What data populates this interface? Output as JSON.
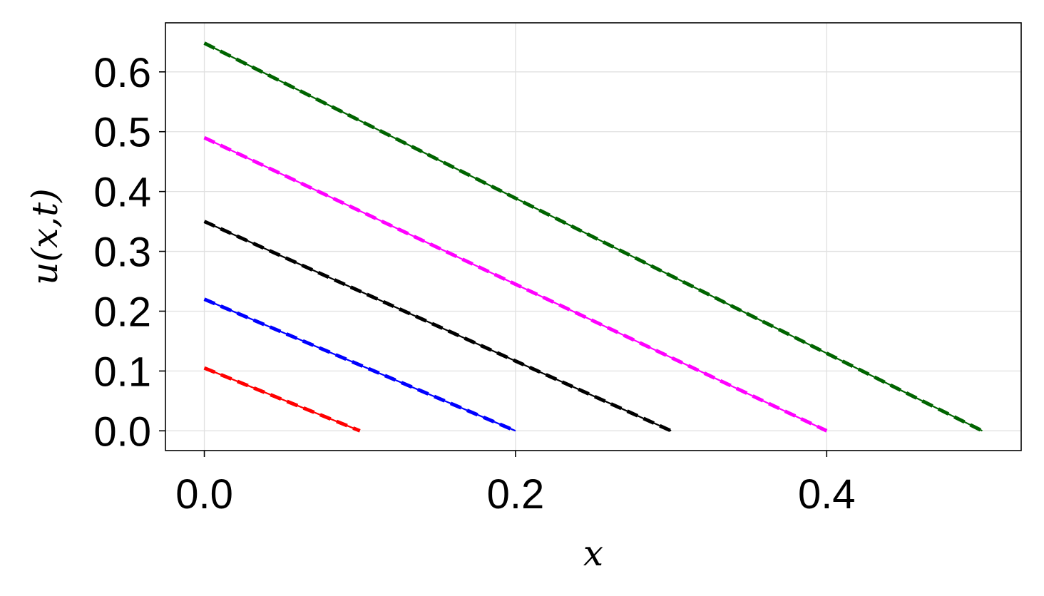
{
  "chart_data": {
    "type": "line",
    "title": "",
    "xlabel": "x",
    "ylabel": "u(x,t)",
    "xlim": [
      -0.025,
      0.525
    ],
    "ylim": [
      -0.033,
      0.682
    ],
    "xticks": [
      0.0,
      0.2,
      0.4
    ],
    "xtick_labels": [
      "0.0",
      "0.2",
      "0.4"
    ],
    "yticks": [
      0.0,
      0.1,
      0.2,
      0.3,
      0.4,
      0.5,
      0.6
    ],
    "ytick_labels": [
      "0.0",
      "0.1",
      "0.2",
      "0.3",
      "0.4",
      "0.5",
      "0.6"
    ],
    "grid": true,
    "legend": "none",
    "series": [
      {
        "color": "#ff0000",
        "style": "solid",
        "x": [
          0.0,
          0.1
        ],
        "y": [
          0.105,
          0.0
        ]
      },
      {
        "color": "#ff0000",
        "style": "dashed",
        "x": [
          0.0,
          0.1
        ],
        "y": [
          0.105,
          0.0
        ]
      },
      {
        "color": "#0000ff",
        "style": "solid",
        "x": [
          0.0,
          0.2
        ],
        "y": [
          0.22,
          0.0
        ]
      },
      {
        "color": "#0000ff",
        "style": "dashed",
        "x": [
          0.0,
          0.2
        ],
        "y": [
          0.22,
          0.0
        ]
      },
      {
        "color": "#000000",
        "style": "solid",
        "x": [
          0.0,
          0.3
        ],
        "y": [
          0.35,
          0.0
        ]
      },
      {
        "color": "#000000",
        "style": "dashed",
        "x": [
          0.0,
          0.3
        ],
        "y": [
          0.35,
          0.0
        ]
      },
      {
        "color": "#ff00ff",
        "style": "solid",
        "x": [
          0.0,
          0.4
        ],
        "y": [
          0.49,
          0.0
        ]
      },
      {
        "color": "#ff00ff",
        "style": "dashed",
        "x": [
          0.0,
          0.4
        ],
        "y": [
          0.49,
          0.0
        ]
      },
      {
        "color": "#006400",
        "style": "solid",
        "x": [
          0.0,
          0.5
        ],
        "y": [
          0.648,
          0.0
        ]
      },
      {
        "color": "#006400",
        "style": "dashed",
        "x": [
          0.0,
          0.5
        ],
        "y": [
          0.648,
          0.0
        ]
      }
    ]
  }
}
